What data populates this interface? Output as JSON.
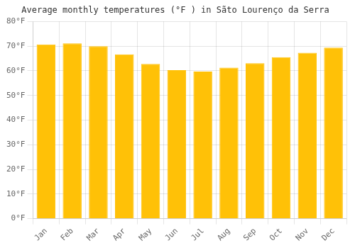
{
  "chart_data": {
    "type": "bar",
    "title": "Average monthly temperatures (°F ) in Sãto Lourenço da Serra",
    "categories": [
      "Jan",
      "Feb",
      "Mar",
      "Apr",
      "May",
      "Jun",
      "Jul",
      "Aug",
      "Sep",
      "Oct",
      "Nov",
      "Dec"
    ],
    "values": [
      70.7,
      71.1,
      70.0,
      66.7,
      62.8,
      60.3,
      59.7,
      61.3,
      63.1,
      65.5,
      67.3,
      69.4
    ],
    "color": "#FFC107",
    "ylim": [
      0,
      80
    ],
    "yticks": [
      {
        "value": 0,
        "label": "0°F"
      },
      {
        "value": 10,
        "label": "10°F"
      },
      {
        "value": 20,
        "label": "20°F"
      },
      {
        "value": 30,
        "label": "30°F"
      },
      {
        "value": 40,
        "label": "40°F"
      },
      {
        "value": 50,
        "label": "50°F"
      },
      {
        "value": 60,
        "label": "60°F"
      },
      {
        "value": 70,
        "label": "70°F"
      },
      {
        "value": 80,
        "label": "80°F"
      }
    ],
    "grid": true
  }
}
